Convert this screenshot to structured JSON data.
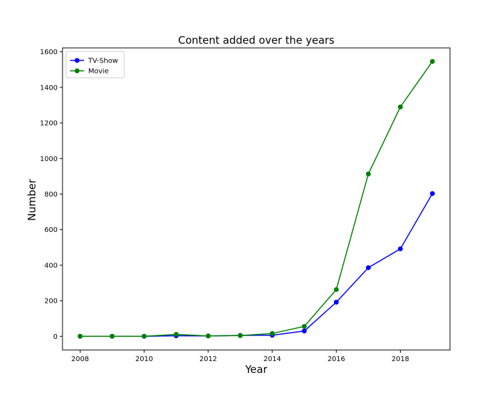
{
  "chart_data": {
    "type": "line",
    "title": "Content added over the years",
    "xlabel": "Year",
    "ylabel": "Number",
    "x": [
      2008,
      2009,
      2010,
      2011,
      2012,
      2013,
      2014,
      2015,
      2016,
      2017,
      2018,
      2019
    ],
    "xlim": [
      2007.45,
      2019.55
    ],
    "ylim": [
      -77,
      1622
    ],
    "xticks": [
      2008,
      2010,
      2012,
      2014,
      2016,
      2018
    ],
    "yticks": [
      0,
      200,
      400,
      600,
      800,
      1000,
      1200,
      1400,
      1600
    ],
    "grid": false,
    "legend_position": "top-left",
    "series": [
      {
        "name": "TV-Show",
        "color": "#0000ff",
        "marker": "circle",
        "values": [
          0,
          0,
          0,
          3,
          2,
          5,
          6,
          30,
          192,
          386,
          492,
          803
        ]
      },
      {
        "name": "Movie",
        "color": "#008000",
        "marker": "circle",
        "values": [
          0,
          0,
          0,
          11,
          2,
          4,
          16,
          56,
          263,
          913,
          1290,
          1546
        ]
      }
    ]
  }
}
